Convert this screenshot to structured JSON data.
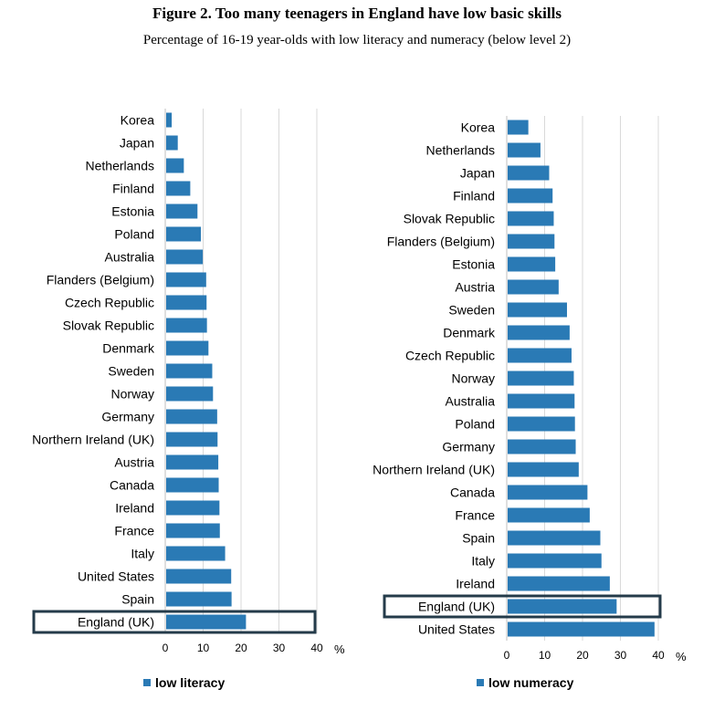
{
  "title": "Figure 2. Too many teenagers in England have low basic skills",
  "subtitle": "Percentage of 16-19 year-olds with low literacy and numeracy (below level 2)",
  "colors": {
    "bar": "#2a7ab5",
    "highlight": "#243b4a",
    "grid": "#d9d9d9"
  },
  "chart_data": [
    {
      "type": "bar",
      "orientation": "horizontal",
      "title": "",
      "xlabel": "%",
      "ylabel": "",
      "xlim": [
        0,
        40
      ],
      "xticks": [
        0,
        10,
        20,
        30,
        40
      ],
      "grid": true,
      "legend": "low literacy",
      "legend_position": "bottom",
      "highlight": "England (UK)",
      "categories": [
        "Korea",
        "Japan",
        "Netherlands",
        "Finland",
        "Estonia",
        "Poland",
        "Australia",
        "Flanders (Belgium)",
        "Czech Republic",
        "Slovak Republic",
        "Denmark",
        "Sweden",
        "Norway",
        "Germany",
        "Northern Ireland (UK)",
        "Austria",
        "Canada",
        "Ireland",
        "France",
        "Italy",
        "United States",
        "Spain",
        "England (UK)"
      ],
      "values": [
        1.7,
        3.3,
        4.9,
        6.6,
        8.5,
        9.4,
        9.9,
        10.8,
        10.9,
        11.0,
        11.4,
        12.4,
        12.6,
        13.7,
        13.8,
        14.0,
        14.1,
        14.3,
        14.4,
        15.8,
        17.4,
        17.5,
        21.3
      ]
    },
    {
      "type": "bar",
      "orientation": "horizontal",
      "title": "",
      "xlabel": "%",
      "ylabel": "",
      "xlim": [
        0,
        40
      ],
      "xticks": [
        0,
        10,
        20,
        30,
        40
      ],
      "grid": true,
      "legend": "low numeracy",
      "legend_position": "bottom",
      "highlight": "England (UK)",
      "categories": [
        "Korea",
        "Netherlands",
        "Japan",
        "Finland",
        "Slovak Republic",
        "Flanders (Belgium)",
        "Estonia",
        "Austria",
        "Sweden",
        "Denmark",
        "Czech Republic",
        "Norway",
        "Australia",
        "Poland",
        "Germany",
        "Northern Ireland (UK)",
        "Canada",
        "France",
        "Spain",
        "Italy",
        "Ireland",
        "England (UK)",
        "United States"
      ],
      "values": [
        5.7,
        8.9,
        11.2,
        12.1,
        12.4,
        12.6,
        12.8,
        13.7,
        15.9,
        16.6,
        17.1,
        17.7,
        17.9,
        18.0,
        18.2,
        19.0,
        21.3,
        21.9,
        24.7,
        25.0,
        27.2,
        29.0,
        39.0
      ]
    }
  ]
}
